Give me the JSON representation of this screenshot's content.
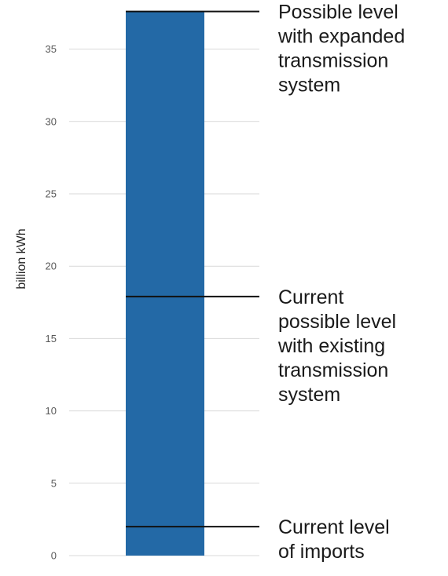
{
  "chart_data": {
    "type": "bar",
    "title": "",
    "xlabel": "",
    "ylabel": "billion kWh",
    "ylim": [
      0,
      37.5
    ],
    "yticks": [
      0,
      5,
      10,
      15,
      20,
      25,
      30,
      35
    ],
    "grid": true,
    "legend": "none",
    "categories": [
      ""
    ],
    "values": [
      37.6
    ],
    "bar_color": "#2369a6",
    "annotations": [
      {
        "value": 37.6,
        "lines": [
          "Possible level",
          "with expanded",
          "transmission",
          "system"
        ]
      },
      {
        "value": 17.9,
        "lines": [
          "Current",
          "possible level",
          "with existing",
          "transmission",
          "system"
        ]
      },
      {
        "value": 2.0,
        "lines": [
          "Current level",
          "of imports"
        ]
      }
    ]
  }
}
